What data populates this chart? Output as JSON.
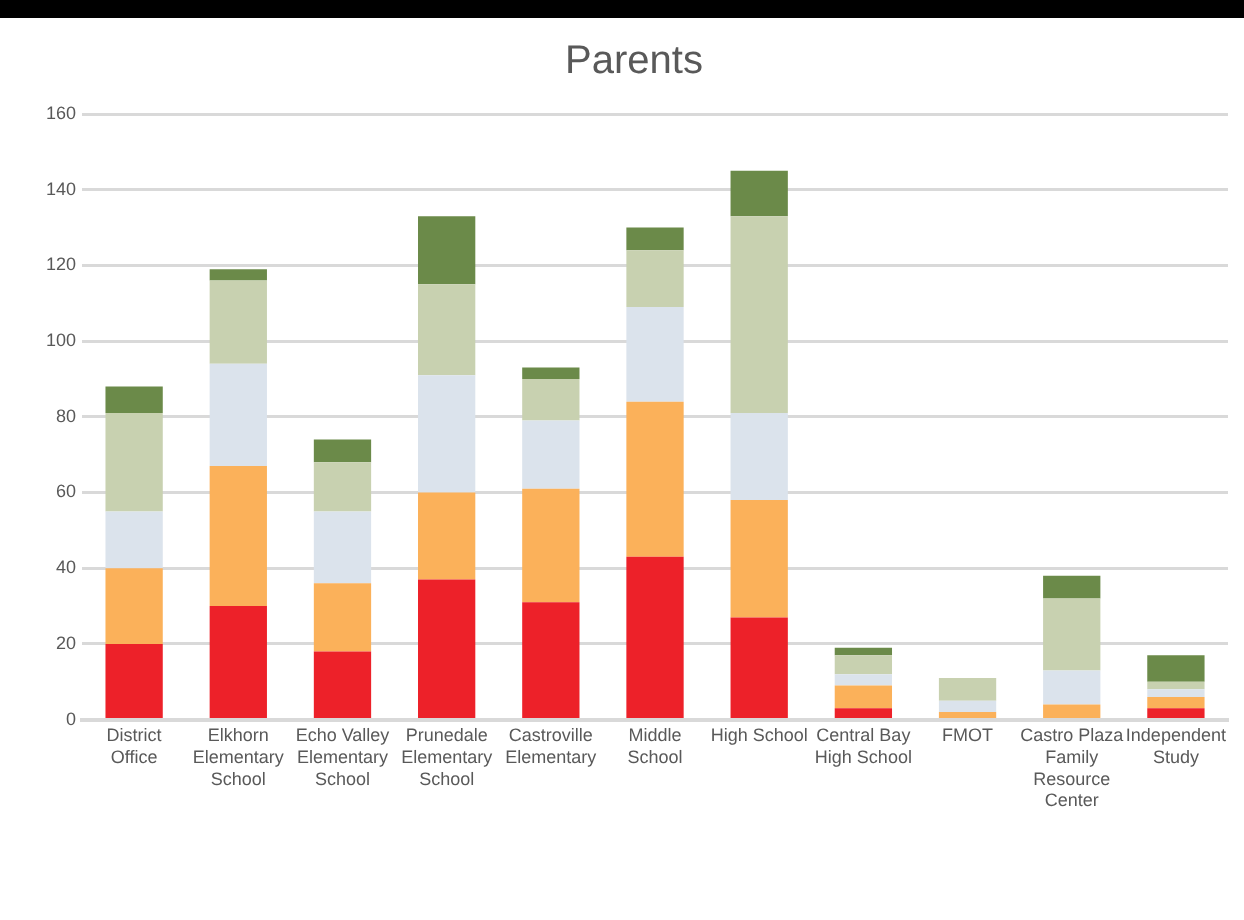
{
  "chart_data": {
    "type": "bar",
    "title": "Parents",
    "stacked": true,
    "categories": [
      "District Office",
      "Elkhorn Elementary School",
      "Echo Valley Elementary School",
      "Prunedale Elementary School",
      "Castroville Elementary",
      "Middle School",
      "High School",
      "Central Bay High School",
      "FMOT",
      "Castro Plaza Family Resource Center",
      "Independent Study"
    ],
    "series": [
      {
        "color": "#ed2129",
        "values": [
          20,
          30,
          18,
          37,
          31,
          43,
          27,
          3,
          0,
          0,
          3
        ]
      },
      {
        "color": "#fbb15a",
        "values": [
          20,
          37,
          18,
          23,
          30,
          41,
          31,
          6,
          2,
          4,
          3
        ]
      },
      {
        "color": "#dbe3ec",
        "values": [
          15,
          27,
          19,
          31,
          18,
          25,
          23,
          3,
          3,
          9,
          2
        ]
      },
      {
        "color": "#c8d1b0",
        "values": [
          26,
          22,
          13,
          24,
          11,
          15,
          52,
          5,
          6,
          19,
          2
        ]
      },
      {
        "color": "#6b8a49",
        "values": [
          7,
          3,
          6,
          18,
          3,
          6,
          12,
          2,
          0,
          6,
          7
        ]
      }
    ],
    "ylim": [
      0,
      160
    ],
    "yticks": [
      0,
      20,
      40,
      60,
      80,
      100,
      120,
      140,
      160
    ],
    "grid": "y",
    "legend": false
  }
}
